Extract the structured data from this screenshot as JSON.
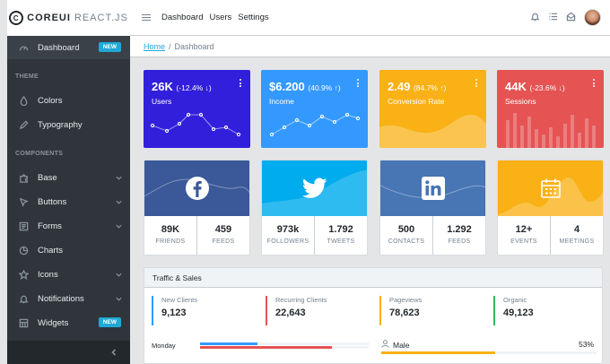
{
  "brand": {
    "bold": "COREUI",
    "light": " REACT.JS",
    "mark": "C"
  },
  "header": {
    "nav": [
      "Dashboard",
      "Users",
      "Settings"
    ]
  },
  "breadcrumb": {
    "home": "Home",
    "separator": "/",
    "current": "Dashboard"
  },
  "sidebar": {
    "dashboard": {
      "label": "Dashboard",
      "badge": "NEW"
    },
    "theme_title": "THEME",
    "components_title": "COMPONENTS",
    "items": [
      {
        "label": "Colors"
      },
      {
        "label": "Typography"
      },
      {
        "label": "Base"
      },
      {
        "label": "Buttons"
      },
      {
        "label": "Forms"
      },
      {
        "label": "Charts"
      },
      {
        "label": "Icons"
      },
      {
        "label": "Notifications"
      },
      {
        "label": "Widgets",
        "badge": "NEW"
      }
    ]
  },
  "stats": [
    {
      "value": "26K",
      "change": "(-12.4% ↓)",
      "label": "Users",
      "color": "#321fdb"
    },
    {
      "value": "$6.200",
      "change": "(40.9% ↑)",
      "label": "Income",
      "color": "#39f"
    },
    {
      "value": "2.49",
      "change": "(84.7% ↑)",
      "label": "Conversion Rate",
      "color": "#f9b115"
    },
    {
      "value": "44K",
      "change": "(-23.6% ↓)",
      "label": "Sessions",
      "color": "#e55353"
    }
  ],
  "social": [
    {
      "network": "facebook",
      "icon": "facebook-icon",
      "color": "#3b5998",
      "a_value": "89K",
      "a_label": "FRIENDS",
      "b_value": "459",
      "b_label": "FEEDS"
    },
    {
      "network": "twitter",
      "icon": "twitter-icon",
      "color": "#00aced",
      "a_value": "973k",
      "a_label": "FOLLOWERS",
      "b_value": "1.792",
      "b_label": "TWEETS"
    },
    {
      "network": "linkedin",
      "icon": "linkedin-icon",
      "color": "#4875b4",
      "a_value": "500",
      "a_label": "CONTACTS",
      "b_value": "1.292",
      "b_label": "FEEDS"
    },
    {
      "network": "calendar",
      "icon": "calendar-icon",
      "color": "#f9b115",
      "a_value": "12+",
      "a_label": "EVENTS",
      "b_value": "4",
      "b_label": "MEETINGS"
    }
  ],
  "traffic": {
    "title": "Traffic & Sales",
    "kpis": [
      {
        "label": "New Clients",
        "value": "9,123",
        "color": "#39f"
      },
      {
        "label": "Recurring Clients",
        "value": "22,643",
        "color": "#e55353"
      },
      {
        "label": "Pageviews",
        "value": "78,623",
        "color": "#f9b115"
      },
      {
        "label": "Organic",
        "value": "49,123",
        "color": "#2eb85c"
      }
    ],
    "day": {
      "label": "Monday",
      "new_clients": 0.34,
      "recurring_clients": 0.78
    },
    "gender": {
      "label": "Male",
      "percent": "53%",
      "fraction": 0.53
    }
  }
}
